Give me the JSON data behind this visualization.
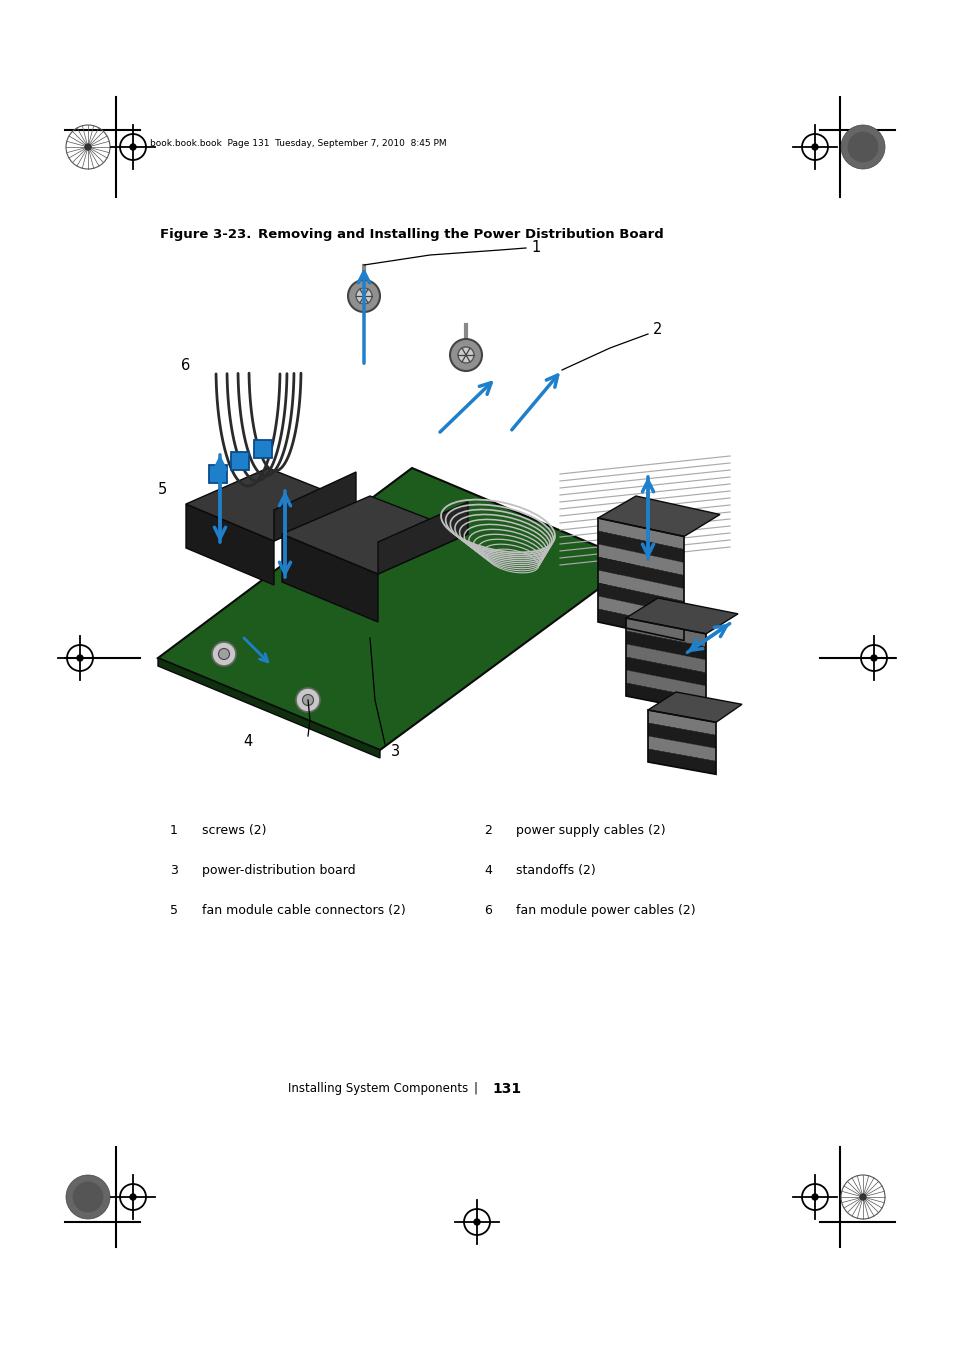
{
  "page_width": 9.54,
  "page_height": 13.5,
  "bg_color": "#ffffff",
  "header_text": "book.book.book  Page 131  Tuesday, September 7, 2010  8:45 PM",
  "figure_title_bold": "Figure 3-23.",
  "figure_title_rest": "    Removing and Installing the Power Distribution Board",
  "legend_items": [
    {
      "num": "1",
      "text": "screws (2)",
      "row": 0,
      "col": 0
    },
    {
      "num": "2",
      "text": "power supply cables (2)",
      "row": 0,
      "col": 1
    },
    {
      "num": "3",
      "text": "power-distribution board",
      "row": 1,
      "col": 0
    },
    {
      "num": "4",
      "text": "standoffs (2)",
      "row": 1,
      "col": 1
    },
    {
      "num": "5",
      "text": "fan module cable connectors (2)",
      "row": 2,
      "col": 0
    },
    {
      "num": "6",
      "text": "fan module power cables (2)",
      "row": 2,
      "col": 1
    }
  ],
  "footer_text_left": "Installing System Components",
  "footer_sep": "|",
  "footer_page": "131",
  "arrow_color": "#1e7fcb",
  "black": "#000000"
}
